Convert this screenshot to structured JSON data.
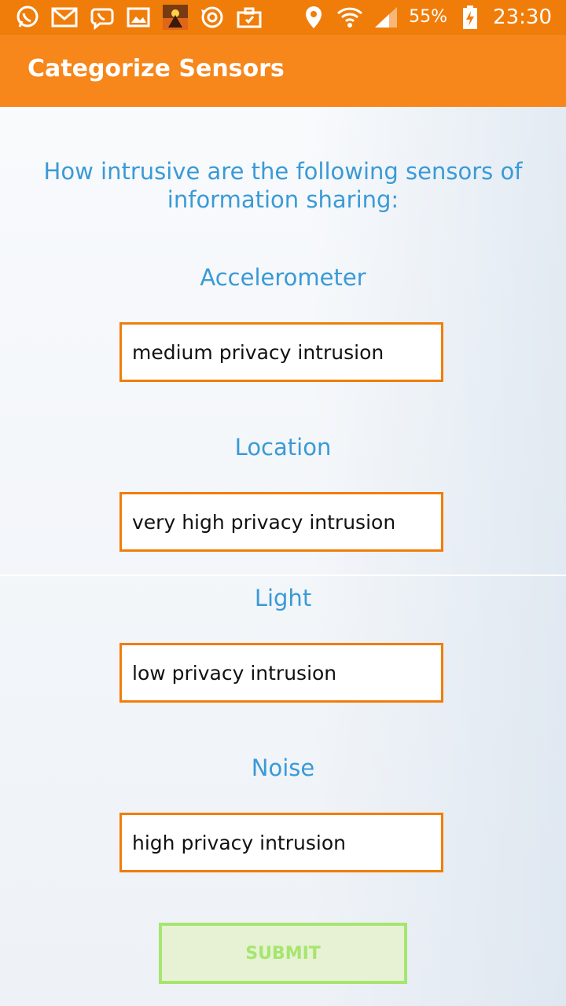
{
  "status_bar": {
    "left_icons": [
      "whatsapp-icon",
      "gmail-icon",
      "viber-icon",
      "gallery-icon",
      "game-app-icon",
      "sync-icon",
      "briefcase-icon"
    ],
    "right_icons": [
      "location-icon",
      "wifi-icon",
      "signal-icon",
      "battery-charging-icon"
    ],
    "battery": "55%",
    "time": "23:30"
  },
  "app_bar": {
    "title": "Categorize Sensors"
  },
  "question": "How intrusive are the following sensors of information sharing:",
  "sensors": [
    {
      "label": "Accelerometer",
      "value": "medium privacy intrusion"
    },
    {
      "label": "Location",
      "value": "very high privacy intrusion"
    },
    {
      "label": "Light",
      "value": "low privacy intrusion"
    },
    {
      "label": "Noise",
      "value": "high privacy intrusion"
    }
  ],
  "submit_label": "SUBMIT",
  "colors": {
    "status_bar": "#f07d0a",
    "app_bar": "#f7861b",
    "label_text": "#3a9ad6",
    "field_border": "#f07d0a",
    "submit_border": "#a6e56e"
  }
}
